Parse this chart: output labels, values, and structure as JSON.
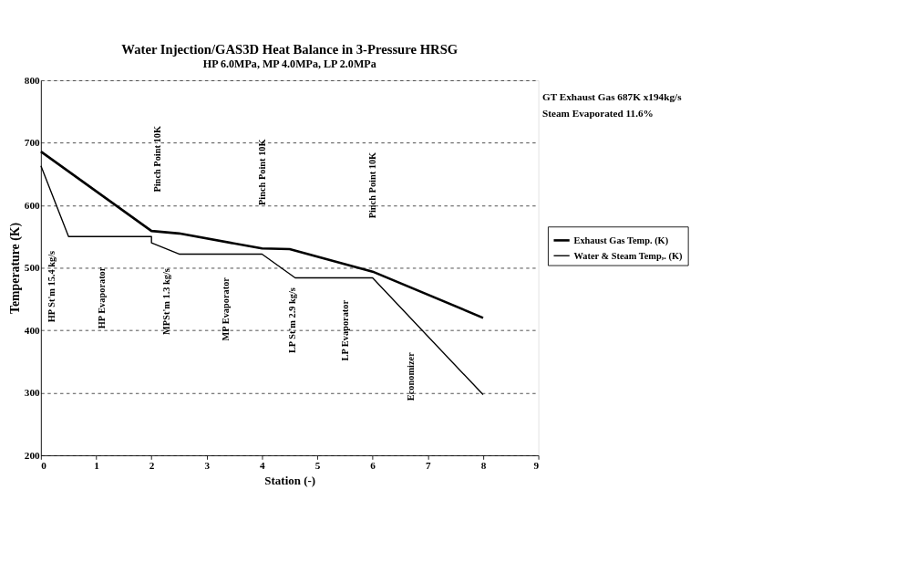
{
  "chart_data": {
    "type": "line",
    "title": "Water Injection/GAS3D    Heat Balance in 3-Pressure HRSG",
    "subtitle": "HP 6.0MPa, MP 4.0MPa, LP 2.0MPa",
    "xlabel": "Station (-)",
    "ylabel": "Temperature (K)",
    "series": [
      {
        "name": "Exhaust Gas Temp. (K)",
        "color": "#000000",
        "x": [
          0,
          2,
          2.5,
          4,
          4.5,
          6,
          8
        ],
        "values": [
          686,
          559,
          555,
          531,
          530,
          494,
          420
        ]
      },
      {
        "name": "Water & Steam Temp,. (K)",
        "color": "#000000",
        "x": [
          0,
          0.5,
          2,
          2,
          2.5,
          4,
          4.6,
          6,
          8
        ],
        "values": [
          663,
          550,
          550,
          540,
          522,
          522,
          484,
          484,
          297
        ]
      }
    ],
    "xlim": [
      0,
      9
    ],
    "xticks": [
      {
        "value": 0,
        "label": "0"
      },
      {
        "value": 1,
        "label": "1"
      },
      {
        "value": 2,
        "label": "2"
      },
      {
        "value": 3,
        "label": "3"
      },
      {
        "value": 4,
        "label": "4"
      },
      {
        "value": 5,
        "label": "5"
      },
      {
        "value": 6,
        "label": "6"
      },
      {
        "value": 7,
        "label": "7"
      },
      {
        "value": 8,
        "label": "8"
      },
      {
        "value": 9,
        "label": "9"
      }
    ],
    "ylim": [
      200,
      800
    ],
    "yticks": [
      200,
      300,
      400,
      500,
      600,
      700,
      800
    ],
    "grid": "y",
    "legend": "right",
    "line_style": "solid",
    "marker": "none",
    "annotations": [
      "GT Exhaust Gas  687K x194kg/s",
      "Steam Evaporated   11.6%",
      "HP St'm 15.4 kg/s",
      "HP Evaporator",
      "Pinch Point 10K",
      "MPSt'm 1.3 kg/s",
      "MP Evaporator",
      "Pinch Point 10K",
      "LP St'm 2.9 kg/s",
      "LP Evaporator",
      "Pinch Point 10K",
      "Economizer"
    ]
  }
}
